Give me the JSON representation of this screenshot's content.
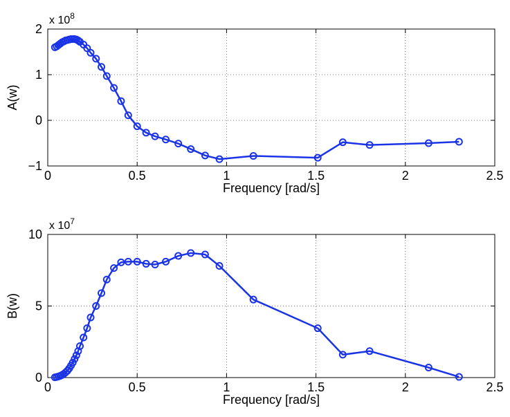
{
  "chart_data": [
    {
      "type": "line",
      "xlabel": "Frequency [rad/s]",
      "ylabel": "A(w)",
      "exponent_label": "x 10",
      "exponent": "8",
      "xlim": [
        0,
        2.5
      ],
      "ylim": [
        -1,
        2
      ],
      "xticks": [
        0,
        0.5,
        1,
        1.5,
        2,
        2.5
      ],
      "xtick_labels": [
        "0",
        "0.5",
        "1",
        "1.5",
        "2",
        "2.5"
      ],
      "yticks": [
        -1,
        0,
        1,
        2
      ],
      "ytick_labels": [
        "−1",
        "0",
        "1",
        "2"
      ],
      "grid": true,
      "marker": "circle",
      "color": "#1a33e6",
      "series": [
        {
          "x": [
            0.04,
            0.05,
            0.06,
            0.07,
            0.08,
            0.09,
            0.1,
            0.11,
            0.12,
            0.13,
            0.14,
            0.15,
            0.16,
            0.17,
            0.18,
            0.2,
            0.22,
            0.24,
            0.27,
            0.3,
            0.33,
            0.37,
            0.41,
            0.45,
            0.5,
            0.55,
            0.6,
            0.66,
            0.73,
            0.8,
            0.88,
            0.96,
            1.15,
            1.51,
            1.65,
            1.8,
            2.13,
            2.3
          ],
          "y": [
            1.6,
            1.62,
            1.65,
            1.68,
            1.71,
            1.73,
            1.75,
            1.76,
            1.77,
            1.78,
            1.78,
            1.78,
            1.77,
            1.75,
            1.72,
            1.66,
            1.58,
            1.48,
            1.35,
            1.17,
            0.97,
            0.71,
            0.42,
            0.11,
            -0.13,
            -0.27,
            -0.35,
            -0.42,
            -0.51,
            -0.63,
            -0.77,
            -0.85,
            -0.78,
            -0.82,
            -0.48,
            -0.54,
            -0.5,
            -0.47
          ]
        }
      ]
    },
    {
      "type": "line",
      "xlabel": "Frequency [rad/s]",
      "ylabel": "B(w)",
      "exponent_label": "x 10",
      "exponent": "7",
      "xlim": [
        0,
        2.5
      ],
      "ylim": [
        0,
        10
      ],
      "xticks": [
        0,
        0.5,
        1,
        1.5,
        2,
        2.5
      ],
      "xtick_labels": [
        "0",
        "0.5",
        "1",
        "1.5",
        "2",
        "2.5"
      ],
      "yticks": [
        0,
        5,
        10
      ],
      "ytick_labels": [
        "0",
        "5",
        "10"
      ],
      "grid": true,
      "marker": "circle",
      "color": "#1a33e6",
      "series": [
        {
          "x": [
            0.04,
            0.05,
            0.06,
            0.07,
            0.08,
            0.09,
            0.1,
            0.11,
            0.12,
            0.13,
            0.14,
            0.15,
            0.16,
            0.17,
            0.18,
            0.2,
            0.22,
            0.24,
            0.27,
            0.3,
            0.33,
            0.37,
            0.41,
            0.45,
            0.5,
            0.55,
            0.6,
            0.66,
            0.73,
            0.8,
            0.88,
            0.96,
            1.15,
            1.51,
            1.65,
            1.8,
            2.13,
            2.3
          ],
          "y": [
            0.02,
            0.04,
            0.08,
            0.12,
            0.18,
            0.26,
            0.36,
            0.48,
            0.64,
            0.84,
            1.05,
            1.3,
            1.55,
            1.85,
            2.2,
            2.8,
            3.45,
            4.2,
            5.0,
            5.9,
            6.85,
            7.65,
            8.05,
            8.1,
            8.1,
            7.95,
            7.9,
            8.1,
            8.5,
            8.7,
            8.6,
            7.8,
            5.45,
            3.45,
            1.6,
            1.85,
            0.7,
            0.05
          ]
        }
      ]
    }
  ]
}
